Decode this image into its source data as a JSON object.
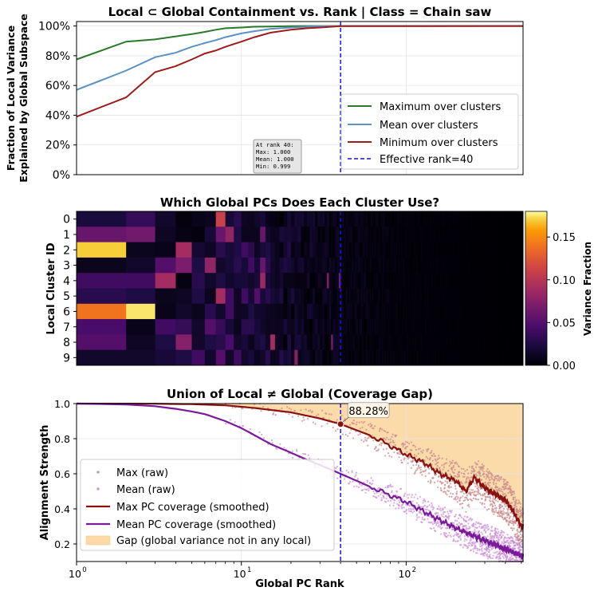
{
  "chart_data": [
    {
      "type": "line",
      "title": "Local ⊂ Global Containment vs. Rank | Class = Chain saw",
      "xlabel": "",
      "ylabel": "Fraction of Local Variance\nExplained by Global Subspace",
      "xscale": "log",
      "xlim": [
        1,
        512
      ],
      "ylim": [
        0,
        1.03
      ],
      "yticks": [
        0,
        0.2,
        0.4,
        0.6,
        0.8,
        1.0
      ],
      "ytick_labels": [
        "0%",
        "20%",
        "40%",
        "60%",
        "80%",
        "100%"
      ],
      "grid": true,
      "legend_position": "lower-right",
      "series": [
        {
          "name": "Maximum over clusters",
          "color": "#2a7a2a",
          "x": [
            1,
            2,
            3,
            4,
            5,
            6,
            7,
            8,
            10,
            12,
            15,
            20,
            25,
            30,
            40,
            512
          ],
          "y": [
            0.775,
            0.895,
            0.91,
            0.93,
            0.945,
            0.96,
            0.975,
            0.985,
            0.99,
            0.995,
            0.997,
            0.999,
            1.0,
            1.0,
            1.0,
            1.0
          ]
        },
        {
          "name": "Mean over clusters",
          "color": "#5a92c2",
          "x": [
            1,
            2,
            3,
            4,
            5,
            6,
            7,
            8,
            10,
            12,
            15,
            20,
            25,
            30,
            40,
            512
          ],
          "y": [
            0.57,
            0.7,
            0.79,
            0.82,
            0.86,
            0.885,
            0.905,
            0.925,
            0.95,
            0.965,
            0.98,
            0.99,
            0.995,
            0.998,
            1.0,
            1.0
          ]
        },
        {
          "name": "Minimum over clusters",
          "color": "#a01c1c",
          "x": [
            1,
            2,
            3,
            4,
            5,
            6,
            7,
            8,
            10,
            12,
            15,
            20,
            25,
            30,
            40,
            512
          ],
          "y": [
            0.39,
            0.52,
            0.69,
            0.73,
            0.775,
            0.815,
            0.835,
            0.86,
            0.895,
            0.925,
            0.955,
            0.975,
            0.985,
            0.99,
            0.999,
            1.0
          ]
        }
      ],
      "vline": {
        "x": 40,
        "label": "Effective rank=40",
        "color": "#1515d8"
      },
      "annotation": {
        "lines": [
          "At rank 40:",
          "Max: 1.000",
          "Mean: 1.000",
          "Min: 0.999"
        ],
        "x": 12.5,
        "y": 0.025
      }
    },
    {
      "type": "heatmap",
      "title": "Which Global PCs Does Each Cluster Use?",
      "xlabel": "",
      "ylabel": "Local Cluster ID",
      "xscale": "log",
      "xlim": [
        1,
        512
      ],
      "yticks": [
        "0",
        "1",
        "2",
        "3",
        "4",
        "5",
        "6",
        "7",
        "8",
        "9"
      ],
      "colorbar": {
        "label": "Variance Fraction",
        "min": 0,
        "max": 0.18,
        "ticks": [
          0.0,
          0.05,
          0.1,
          0.15
        ],
        "tick_labels": [
          "0.00",
          "0.05",
          "0.10",
          "0.15"
        ],
        "colormap": "inferno"
      },
      "columns_shown": 512,
      "first_columns": [
        1,
        2,
        3,
        4,
        5,
        6,
        7,
        8,
        9,
        10,
        11,
        12,
        13,
        14,
        15,
        16
      ],
      "values_first_columns": [
        [
          0.022,
          0.035,
          0.015,
          0.004,
          0.008,
          0.01,
          0.11,
          0.02,
          0.03,
          0.012,
          0.01,
          0.015,
          0.02,
          0.008,
          0.006,
          0.005
        ],
        [
          0.06,
          0.065,
          0.012,
          0.006,
          0.004,
          0.02,
          0.06,
          0.08,
          0.025,
          0.01,
          0.01,
          0.01,
          0.06,
          0.015,
          0.01,
          0.01
        ],
        [
          0.17,
          0.01,
          0.008,
          0.09,
          0.018,
          0.012,
          0.03,
          0.02,
          0.025,
          0.04,
          0.03,
          0.012,
          0.02,
          0.025,
          0.015,
          0.01
        ],
        [
          0.01,
          0.015,
          0.05,
          0.07,
          0.025,
          0.08,
          0.015,
          0.02,
          0.03,
          0.02,
          0.04,
          0.02,
          0.06,
          0.03,
          0.015,
          0.01
        ],
        [
          0.04,
          0.04,
          0.09,
          0.005,
          0.03,
          0.015,
          0.025,
          0.015,
          0.02,
          0.02,
          0.015,
          0.02,
          0.085,
          0.02,
          0.015,
          0.012
        ],
        [
          0.03,
          0.025,
          0.01,
          0.012,
          0.025,
          0.01,
          0.09,
          0.04,
          0.012,
          0.04,
          0.02,
          0.05,
          0.02,
          0.03,
          0.02,
          0.015
        ],
        [
          0.14,
          0.175,
          0.008,
          0.015,
          0.01,
          0.03,
          0.015,
          0.04,
          0.012,
          0.012,
          0.025,
          0.015,
          0.015,
          0.012,
          0.01,
          0.008
        ],
        [
          0.045,
          0.008,
          0.04,
          0.035,
          0.015,
          0.05,
          0.035,
          0.02,
          0.01,
          0.03,
          0.03,
          0.02,
          0.015,
          0.01,
          0.012,
          0.01
        ],
        [
          0.05,
          0.012,
          0.025,
          0.075,
          0.015,
          0.025,
          0.03,
          0.045,
          0.015,
          0.02,
          0.01,
          0.02,
          0.025,
          0.012,
          0.09,
          0.012
        ],
        [
          0.015,
          0.015,
          0.02,
          0.025,
          0.04,
          0.015,
          0.05,
          0.015,
          0.04,
          0.015,
          0.02,
          0.01,
          0.015,
          0.03,
          0.01,
          0.012
        ]
      ],
      "vline": {
        "x": 40,
        "color": "#1515d8"
      }
    },
    {
      "type": "line",
      "title": "Union of Local ≠ Global (Coverage Gap)",
      "xlabel": "Global PC Rank",
      "ylabel": "Alignment Strength",
      "xscale": "log",
      "xlim": [
        1,
        512
      ],
      "xticks": [
        1,
        10,
        100
      ],
      "xtick_labels": [
        {
          "base": "10",
          "exp": "0"
        },
        {
          "base": "10",
          "exp": "1"
        },
        {
          "base": "10",
          "exp": "2"
        }
      ],
      "ylim": [
        0.1,
        1.0
      ],
      "yticks": [
        0.2,
        0.4,
        0.6,
        0.8,
        1.0
      ],
      "ytick_labels": [
        "0.2",
        "0.4",
        "0.6",
        "0.8",
        "1.0"
      ],
      "grid": true,
      "legend_position": "lower-left",
      "series": [
        {
          "name": "Max (raw)",
          "kind": "scatter",
          "color": "#c98a8a"
        },
        {
          "name": "Mean (raw)",
          "kind": "scatter",
          "color": "#c98ad6"
        },
        {
          "name": "Max PC coverage (smoothed)",
          "color": "#8b1010",
          "x": [
            1,
            3,
            5,
            8,
            12,
            20,
            30,
            40,
            60,
            80,
            100,
            130,
            160,
            200,
            230,
            260,
            300,
            350,
            400,
            450,
            500
          ],
          "y": [
            1.0,
            0.999,
            0.997,
            0.99,
            0.975,
            0.95,
            0.915,
            0.883,
            0.82,
            0.76,
            0.71,
            0.66,
            0.6,
            0.56,
            0.5,
            0.58,
            0.52,
            0.48,
            0.45,
            0.38,
            0.3
          ]
        },
        {
          "name": "Mean PC coverage (smoothed)",
          "color": "#7a1a9a",
          "x": [
            1,
            2,
            3,
            4,
            5,
            6,
            8,
            10,
            12,
            15,
            20,
            25,
            30,
            40,
            50,
            70,
            100,
            150,
            200,
            300,
            400,
            512
          ],
          "y": [
            1.0,
            0.995,
            0.985,
            0.97,
            0.955,
            0.94,
            0.9,
            0.86,
            0.82,
            0.77,
            0.72,
            0.68,
            0.65,
            0.6,
            0.56,
            0.5,
            0.44,
            0.35,
            0.29,
            0.22,
            0.17,
            0.13
          ]
        }
      ],
      "fill": {
        "name": "Gap (global variance not in any local)",
        "color": "#fcd9a6"
      },
      "vline": {
        "x": 40,
        "color": "#1515d8"
      },
      "marker": {
        "x": 40,
        "y": 0.8828,
        "label": "88.28%"
      }
    }
  ]
}
